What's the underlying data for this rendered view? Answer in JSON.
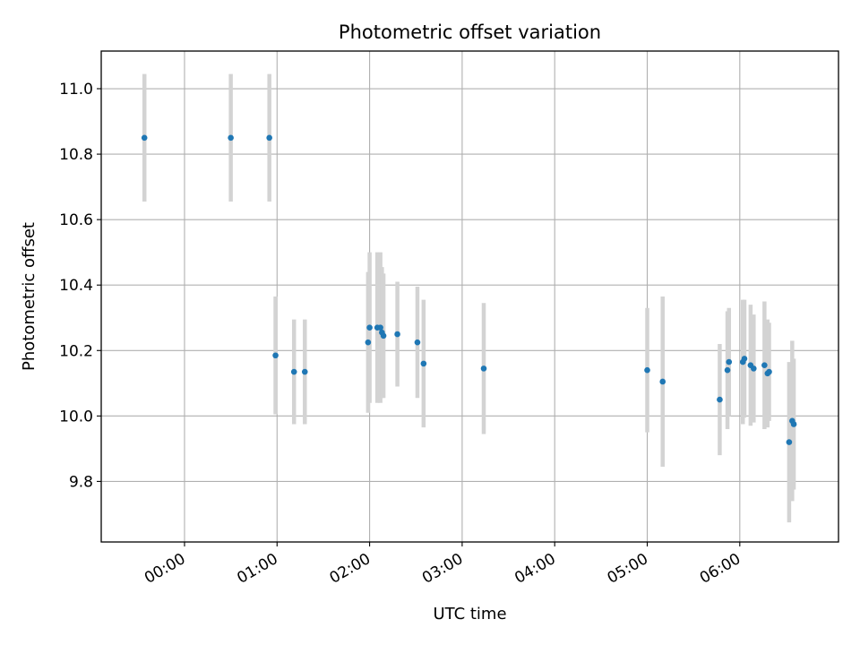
{
  "chart_data": {
    "type": "scatter",
    "title": "Photometric offset variation",
    "xlabel": "UTC time",
    "ylabel": "Photometric offset",
    "x_ticks": [
      "00:00",
      "01:00",
      "02:00",
      "03:00",
      "04:00",
      "05:00",
      "06:00"
    ],
    "y_ticks": [
      "9.8",
      "10.0",
      "10.2",
      "10.4",
      "10.6",
      "10.8",
      "11.0"
    ],
    "xlim": [
      "23:06",
      "07:04"
    ],
    "ylim": [
      9.615,
      11.115
    ],
    "grid": true,
    "colors": {
      "marker": "#1f77b4",
      "errorbar": "#d3d3d3",
      "grid": "#b0b0b0"
    },
    "series": [
      {
        "points": [
          {
            "x": "23:34",
            "y": 10.85,
            "err": 0.195
          },
          {
            "x": "00:30",
            "y": 10.85,
            "err": 0.195
          },
          {
            "x": "00:55",
            "y": 10.85,
            "err": 0.195
          },
          {
            "x": "00:59",
            "y": 10.185,
            "err": 0.18
          },
          {
            "x": "01:11",
            "y": 10.135,
            "err": 0.16
          },
          {
            "x": "01:18",
            "y": 10.135,
            "err": 0.16
          },
          {
            "x": "01:59",
            "y": 10.225,
            "err": 0.215
          },
          {
            "x": "02:00",
            "y": 10.27,
            "err": 0.23
          },
          {
            "x": "02:05",
            "y": 10.27,
            "err": 0.23
          },
          {
            "x": "02:07",
            "y": 10.27,
            "err": 0.23
          },
          {
            "x": "02:08",
            "y": 10.255,
            "err": 0.2
          },
          {
            "x": "02:09",
            "y": 10.245,
            "err": 0.19
          },
          {
            "x": "02:18",
            "y": 10.25,
            "err": 0.16
          },
          {
            "x": "02:31",
            "y": 10.225,
            "err": 0.17
          },
          {
            "x": "02:35",
            "y": 10.16,
            "err": 0.195
          },
          {
            "x": "03:14",
            "y": 10.145,
            "err": 0.2
          },
          {
            "x": "05:00",
            "y": 10.14,
            "err": 0.19
          },
          {
            "x": "05:10",
            "y": 10.105,
            "err": 0.26
          },
          {
            "x": "05:47",
            "y": 10.05,
            "err": 0.17
          },
          {
            "x": "05:52",
            "y": 10.14,
            "err": 0.18
          },
          {
            "x": "05:53",
            "y": 10.165,
            "err": 0.165
          },
          {
            "x": "06:02",
            "y": 10.165,
            "err": 0.19
          },
          {
            "x": "06:03",
            "y": 10.175,
            "err": 0.18
          },
          {
            "x": "06:07",
            "y": 10.155,
            "err": 0.185
          },
          {
            "x": "06:09",
            "y": 10.145,
            "err": 0.165
          },
          {
            "x": "06:16",
            "y": 10.155,
            "err": 0.195
          },
          {
            "x": "06:18",
            "y": 10.13,
            "err": 0.165
          },
          {
            "x": "06:19",
            "y": 10.135,
            "err": 0.15
          },
          {
            "x": "06:32",
            "y": 9.92,
            "err": 0.245
          },
          {
            "x": "06:34",
            "y": 9.985,
            "err": 0.245
          },
          {
            "x": "06:35",
            "y": 9.975,
            "err": 0.2
          }
        ]
      }
    ]
  }
}
